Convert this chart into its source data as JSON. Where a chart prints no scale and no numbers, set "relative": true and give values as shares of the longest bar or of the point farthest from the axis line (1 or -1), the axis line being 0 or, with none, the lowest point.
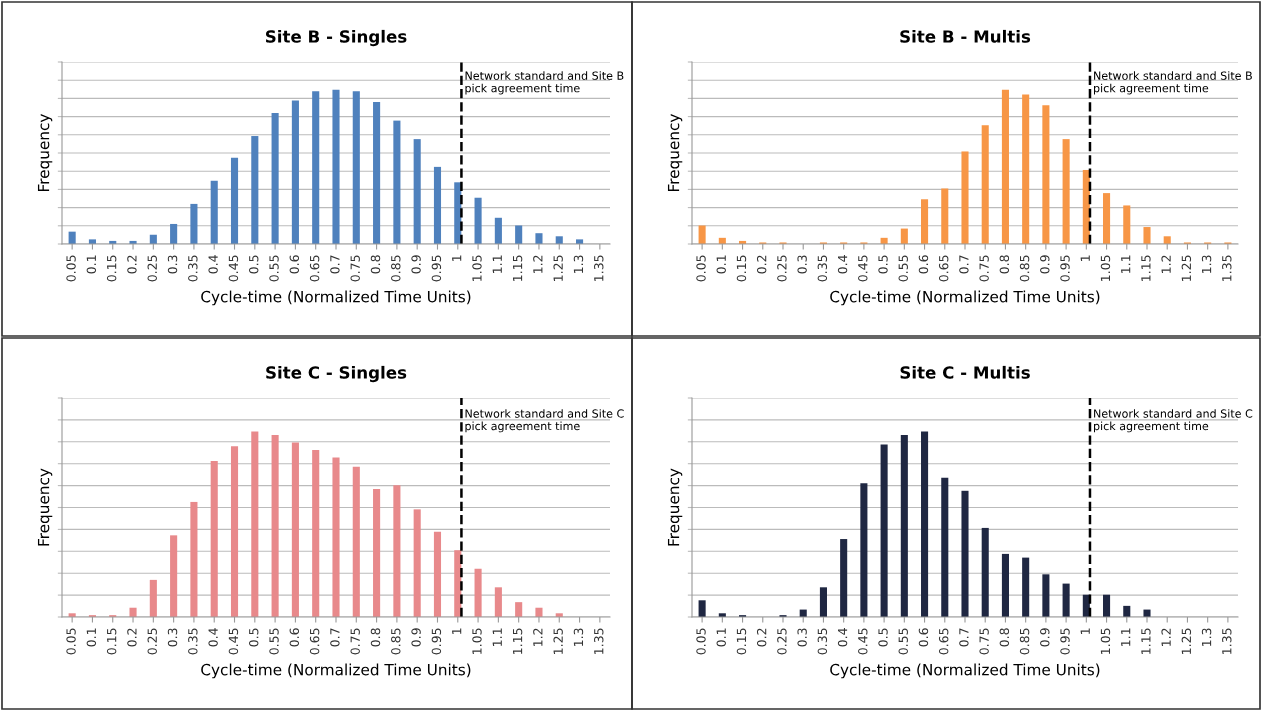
{
  "chart_data": [
    {
      "type": "bar",
      "title": "Site B - Singles",
      "xlabel": "Cycle-time (Normalized Time Units)",
      "ylabel": "Frequency",
      "relative": true,
      "grid": "y",
      "tick_labels": "x",
      "color": "#4f81bd",
      "categories": [
        "0.05",
        "0.1",
        "0.15",
        "0.2",
        "0.25",
        "0.3",
        "0.35",
        "0.4",
        "0.45",
        "0.5",
        "0.55",
        "0.6",
        "0.65",
        "0.7",
        "0.75",
        "0.8",
        "0.85",
        "0.9",
        "0.95",
        "1",
        "1.05",
        "1.1",
        "1.15",
        "1.2",
        "1.25",
        "1.3",
        "1.35"
      ],
      "values": [
        0.08,
        0.03,
        0.02,
        0.02,
        0.06,
        0.13,
        0.26,
        0.41,
        0.56,
        0.7,
        0.85,
        0.93,
        0.99,
        1,
        0.99,
        0.92,
        0.8,
        0.68,
        0.5,
        0.4,
        0.3,
        0.17,
        0.12,
        0.07,
        0.05,
        0.03,
        0
      ],
      "ref_lines": [
        {
          "axis": "x",
          "value": "1",
          "label": "Network standard and Site B pick agreement time",
          "color": "#000000",
          "line_style": "dashed"
        }
      ]
    },
    {
      "type": "bar",
      "title": "Site B - Multis",
      "xlabel": "Cycle-time (Normalized Time Units)",
      "ylabel": "Frequency",
      "relative": true,
      "grid": "y",
      "tick_labels": "x",
      "color": "#f79646",
      "categories": [
        "0.05",
        "0.1",
        "0.15",
        "0.2",
        "0.25",
        "0.3",
        "0.35",
        "0.4",
        "0.45",
        "0.5",
        "0.55",
        "0.6",
        "0.65",
        "0.7",
        "0.75",
        "0.8",
        "0.85",
        "0.9",
        "0.95",
        "1",
        "1.05",
        "1.1",
        "1.15",
        "1.2",
        "1.25",
        "1.3",
        "1.35"
      ],
      "values": [
        0.12,
        0.04,
        0.02,
        0.01,
        0.01,
        0,
        0.01,
        0.01,
        0.01,
        0.04,
        0.1,
        0.29,
        0.36,
        0.6,
        0.77,
        1,
        0.97,
        0.9,
        0.68,
        0.48,
        0.33,
        0.25,
        0.11,
        0.05,
        0.01,
        0.01,
        0.01
      ],
      "ref_lines": [
        {
          "axis": "x",
          "value": "1",
          "label": "Network standard and Site B pick agreement time",
          "color": "#000000",
          "line_style": "dashed"
        }
      ]
    },
    {
      "type": "bar",
      "title": "Site C - Singles",
      "xlabel": "Cycle-time (Normalized Time Units)",
      "ylabel": "Frequency",
      "relative": true,
      "grid": "y",
      "tick_labels": "x",
      "color": "#e8898b",
      "categories": [
        "0.05",
        "0.1",
        "0.15",
        "0.2",
        "0.25",
        "0.3",
        "0.35",
        "0.4",
        "0.45",
        "0.5",
        "0.55",
        "0.6",
        "0.65",
        "0.7",
        "0.75",
        "0.8",
        "0.85",
        "0.9",
        "0.95",
        "1",
        "1.05",
        "1.1",
        "1.15",
        "1.2",
        "1.25",
        "1.3",
        "1.35"
      ],
      "values": [
        0.02,
        0.01,
        0.01,
        0.05,
        0.2,
        0.44,
        0.62,
        0.84,
        0.92,
        1,
        0.98,
        0.94,
        0.9,
        0.86,
        0.81,
        0.69,
        0.71,
        0.58,
        0.46,
        0.36,
        0.26,
        0.16,
        0.08,
        0.05,
        0.02,
        0,
        0
      ],
      "ref_lines": [
        {
          "axis": "x",
          "value": "1",
          "label": "Network standard and Site C pick agreement time",
          "color": "#000000",
          "line_style": "dashed"
        }
      ]
    },
    {
      "type": "bar",
      "title": "Site C - Multis",
      "xlabel": "Cycle-time (Normalized Time Units)",
      "ylabel": "Frequency",
      "relative": true,
      "grid": "y",
      "tick_labels": "x",
      "color": "#1f2742",
      "categories": [
        "0.05",
        "0.1",
        "0.15",
        "0.2",
        "0.25",
        "0.3",
        "0.35",
        "0.4",
        "0.45",
        "0.5",
        "0.55",
        "0.6",
        "0.65",
        "0.7",
        "0.75",
        "0.8",
        "0.85",
        "0.9",
        "0.95",
        "1",
        "1.05",
        "1.1",
        "1.15",
        "1.2",
        "1.25",
        "1.3",
        "1.35"
      ],
      "values": [
        0.09,
        0.02,
        0.01,
        0,
        0.01,
        0.04,
        0.16,
        0.42,
        0.72,
        0.93,
        0.98,
        1,
        0.75,
        0.68,
        0.48,
        0.34,
        0.32,
        0.23,
        0.18,
        0.12,
        0.12,
        0.06,
        0.04,
        0,
        0,
        0,
        0
      ],
      "ref_lines": [
        {
          "axis": "x",
          "value": "1",
          "label": "Network standard and Site C pick agreement time",
          "color": "#000000",
          "line_style": "dashed"
        }
      ]
    }
  ]
}
